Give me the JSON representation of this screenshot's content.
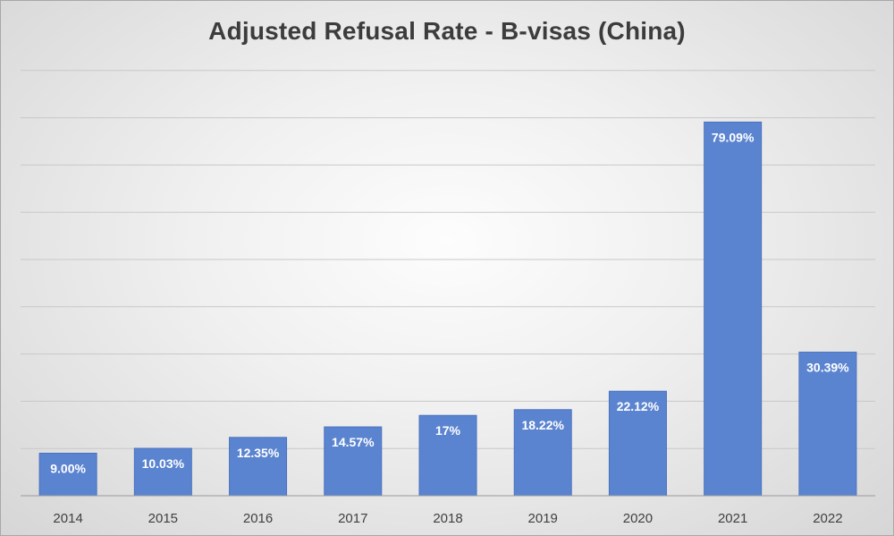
{
  "chart_data": {
    "type": "bar",
    "title": "Adjusted Refusal Rate - B-visas (China)",
    "xlabel": "",
    "ylabel": "",
    "categories": [
      "2014",
      "2015",
      "2016",
      "2017",
      "2018",
      "2019",
      "2020",
      "2021",
      "2022"
    ],
    "values": [
      9.0,
      10.03,
      12.35,
      14.57,
      17,
      18.22,
      22.12,
      79.09,
      30.39
    ],
    "data_labels": [
      "9.00%",
      "10.03%",
      "12.35%",
      "14.57%",
      "17%",
      "18.22%",
      "22.12%",
      "79.09%",
      "30.39%"
    ],
    "ylim": [
      0,
      90
    ],
    "gridlines": true,
    "y_tick_labels_shown": false,
    "legend": "none",
    "bar_color": "#5b84d0",
    "bar_edge_color": "#4a72bf",
    "gridline_color": "#c8c8c8"
  }
}
